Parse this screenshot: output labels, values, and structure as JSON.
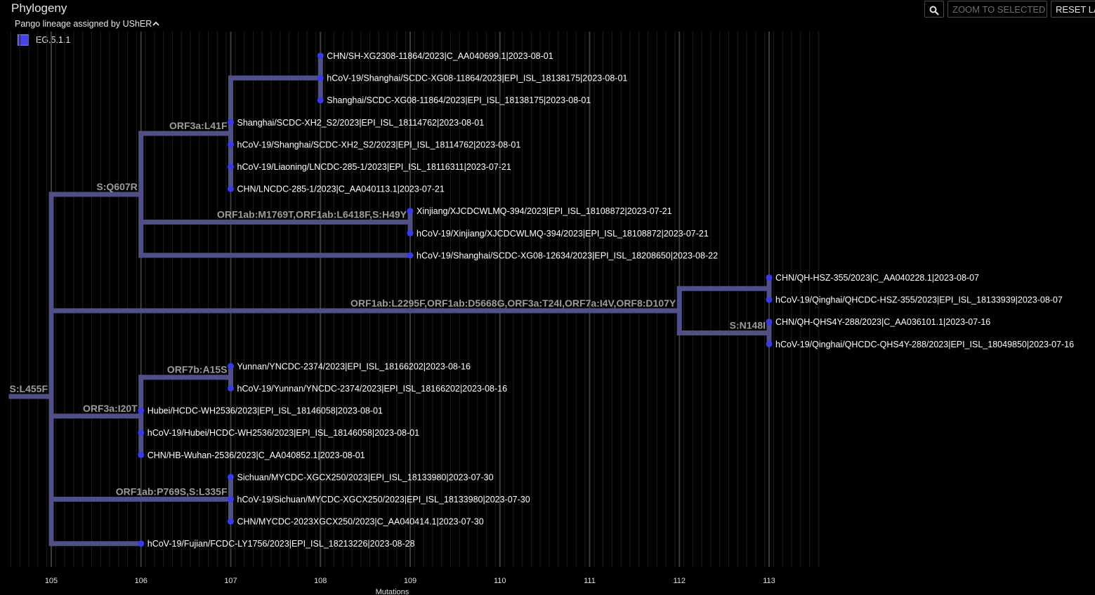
{
  "header": {
    "title": "Phylogeny",
    "search_icon": "magnifier-icon",
    "zoom_label": "ZOOM TO SELECTED",
    "reset_label": "RESET LA"
  },
  "legend": {
    "title": "Pango lineage assigned by UShER",
    "toggle_icon": "chevron-up-icon",
    "items": [
      {
        "label": "EG.5.1.1",
        "color": "#4444e8"
      }
    ]
  },
  "colors": {
    "background": "#000000",
    "branch": "#505088",
    "node": "#3a3ae6",
    "gridline": "#3c3c3c",
    "minor_gridline": "#1c1c1c"
  },
  "chart_data": {
    "type": "phylogenetic-tree",
    "xlabel": "Mutations",
    "xlim": [
      104.55,
      113.55
    ],
    "ticks": [
      105,
      106,
      107,
      108,
      109,
      110,
      111,
      112,
      113
    ],
    "branch_mutations": [
      {
        "label": "S:L455F",
        "at": 105
      },
      {
        "label": "S:Q607R",
        "at": 106
      },
      {
        "label": "ORF3a:L41F",
        "at": 107
      },
      {
        "label": "ORF1ab:M1769T,ORF1ab:L6418F,S:H49Y",
        "at": 109
      },
      {
        "label": "ORF1ab:L2295F,ORF1ab:D5668G,ORF3a:T24I,ORF7a:I4V,ORF8:D107Y",
        "at": 112
      },
      {
        "label": "S:N148I",
        "at": 113
      },
      {
        "label": "ORF7b:A15S",
        "at": 107
      },
      {
        "label": "ORF3a:I20T",
        "at": 106
      },
      {
        "label": "ORF1ab:P769S,S:L335F",
        "at": 107
      }
    ],
    "leaves": [
      {
        "name": "CHN/SH-XG2308-11864/2023|C_AA040699.1|2023-08-01",
        "mutations": 108
      },
      {
        "name": "hCoV-19/Shanghai/SCDC-XG08-11864/2023|EPI_ISL_18138175|2023-08-01",
        "mutations": 108
      },
      {
        "name": "Shanghai/SCDC-XG08-11864/2023|EPI_ISL_18138175|2023-08-01",
        "mutations": 108
      },
      {
        "name": "Shanghai/SCDC-XH2_S2/2023|EPI_ISL_18114762|2023-08-01",
        "mutations": 107
      },
      {
        "name": "hCoV-19/Shanghai/SCDC-XH2_S2/2023|EPI_ISL_18114762|2023-08-01",
        "mutations": 107
      },
      {
        "name": "hCoV-19/Liaoning/LNCDC-285-1/2023|EPI_ISL_18116311|2023-07-21",
        "mutations": 107
      },
      {
        "name": "CHN/LNCDC-285-1/2023|C_AA040113.1|2023-07-21",
        "mutations": 107
      },
      {
        "name": "Xinjiang/XJCDCWLMQ-394/2023|EPI_ISL_18108872|2023-07-21",
        "mutations": 109
      },
      {
        "name": "hCoV-19/Xinjiang/XJCDCWLMQ-394/2023|EPI_ISL_18108872|2023-07-21",
        "mutations": 109
      },
      {
        "name": "hCoV-19/Shanghai/SCDC-XG08-12634/2023|EPI_ISL_18208650|2023-08-22",
        "mutations": 109
      },
      {
        "name": "CHN/QH-HSZ-355/2023|C_AA040228.1|2023-08-07",
        "mutations": 113
      },
      {
        "name": "hCoV-19/Qinghai/QHCDC-HSZ-355/2023|EPI_ISL_18133939|2023-08-07",
        "mutations": 113
      },
      {
        "name": "CHN/QH-QHS4Y-288/2023|C_AA036101.1|2023-07-16",
        "mutations": 113
      },
      {
        "name": "hCoV-19/Qinghai/QHCDC-QHS4Y-288/2023|EPI_ISL_18049850|2023-07-16",
        "mutations": 113
      },
      {
        "name": "Yunnan/YNCDC-2374/2023|EPI_ISL_18166202|2023-08-16",
        "mutations": 107
      },
      {
        "name": "hCoV-19/Yunnan/YNCDC-2374/2023|EPI_ISL_18166202|2023-08-16",
        "mutations": 107
      },
      {
        "name": "Hubei/HCDC-WH2536/2023|EPI_ISL_18146058|2023-08-01",
        "mutations": 106
      },
      {
        "name": "hCoV-19/Hubei/HCDC-WH2536/2023|EPI_ISL_18146058|2023-08-01",
        "mutations": 106
      },
      {
        "name": "CHN/HB-Wuhan-2536/2023|C_AA040852.1|2023-08-01",
        "mutations": 106
      },
      {
        "name": "Sichuan/MYCDC-XGCX250/2023|EPI_ISL_18133980|2023-07-30",
        "mutations": 107
      },
      {
        "name": "hCoV-19/Sichuan/MYCDC-XGCX250/2023|EPI_ISL_18133980|2023-07-30",
        "mutations": 107
      },
      {
        "name": "CHN/MYCDC-2023XGCX250/2023|C_AA040414.1|2023-07-30",
        "mutations": 107
      },
      {
        "name": "hCoV-19/Fujian/FCDC-LY1756/2023|EPI_ISL_18213226|2023-08-28",
        "mutations": 106
      }
    ]
  }
}
